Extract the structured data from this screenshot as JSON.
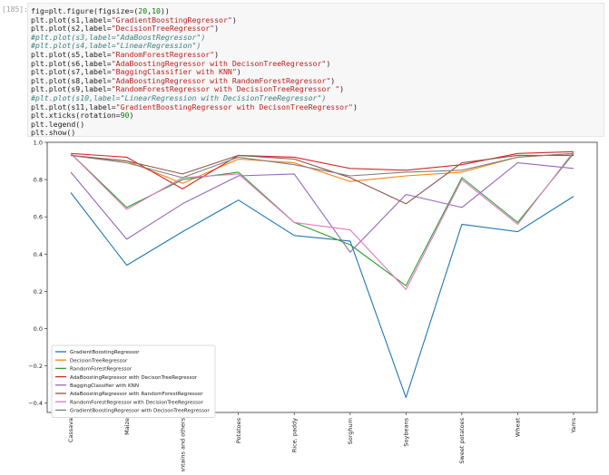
{
  "cell": {
    "prompt": "[185]:",
    "code_lines": [
      {
        "type": "code",
        "parts": [
          [
            "plain",
            "fig=plt.figure(figsize=("
          ],
          [
            "num",
            "20"
          ],
          [
            "plain",
            ","
          ],
          [
            "num",
            "10"
          ],
          [
            "plain",
            "))"
          ]
        ]
      },
      {
        "type": "code",
        "parts": [
          [
            "plain",
            "plt.plot(s1,label="
          ],
          [
            "str",
            "\"GradientBoostingRegressor\""
          ],
          [
            "plain",
            ")"
          ]
        ]
      },
      {
        "type": "code",
        "parts": [
          [
            "plain",
            "plt.plot(s2,label="
          ],
          [
            "str",
            "\"DecisionTreeRegressor\""
          ],
          [
            "plain",
            ")"
          ]
        ]
      },
      {
        "type": "comment",
        "parts": [
          [
            "plain",
            "#plt.plot(s3,label=\"AdaBoostRegressor\")"
          ]
        ]
      },
      {
        "type": "comment",
        "parts": [
          [
            "plain",
            "#plt.plot(s4,label=\"LinearRegression\")"
          ]
        ]
      },
      {
        "type": "code",
        "parts": [
          [
            "plain",
            "plt.plot(s5,label="
          ],
          [
            "str",
            "\"RandomForestRegressor\""
          ],
          [
            "plain",
            ")"
          ]
        ]
      },
      {
        "type": "code",
        "parts": [
          [
            "plain",
            "plt.plot(s6,label="
          ],
          [
            "str",
            "\"AdaBoostingRegressor with DecisonTreeRegressor\""
          ],
          [
            "plain",
            ")"
          ]
        ]
      },
      {
        "type": "code",
        "parts": [
          [
            "plain",
            "plt.plot(s7,label="
          ],
          [
            "str",
            "\"BaggingClassifier with KNN\""
          ],
          [
            "plain",
            ")"
          ]
        ]
      },
      {
        "type": "code",
        "parts": [
          [
            "plain",
            "plt.plot(s8,label="
          ],
          [
            "str",
            "\"AdaBoostingRegressor with RandomForestRegressor\""
          ],
          [
            "plain",
            ")"
          ]
        ]
      },
      {
        "type": "code",
        "parts": [
          [
            "plain",
            "plt.plot(s9,label="
          ],
          [
            "str",
            "\"RandomForestRegressor with DecisionTreeRegressor \""
          ],
          [
            "plain",
            ")"
          ]
        ]
      },
      {
        "type": "comment",
        "parts": [
          [
            "plain",
            "#plt.plot(s10,label=\"LinearRegression with DecisionTreeRegressor\")"
          ]
        ]
      },
      {
        "type": "code",
        "parts": [
          [
            "plain",
            "plt.plot(s11,label="
          ],
          [
            "str",
            "\"GradientBoostingRegressor with DecisonTreeRegressor\""
          ],
          [
            "plain",
            ")"
          ]
        ]
      },
      {
        "type": "code",
        "parts": [
          [
            "plain",
            "plt.xticks(rotation="
          ],
          [
            "num",
            "90"
          ],
          [
            "plain",
            ")"
          ]
        ]
      },
      {
        "type": "code",
        "parts": [
          [
            "plain",
            "plt.legend()"
          ]
        ]
      },
      {
        "type": "code",
        "parts": [
          [
            "plain",
            "plt.show()"
          ]
        ]
      }
    ]
  },
  "chart_data": {
    "type": "line",
    "title": "",
    "xlabel": "",
    "ylabel": "",
    "grid": false,
    "legend_position": "lower-left",
    "ylim": [
      -0.45,
      1.0
    ],
    "yticks": [
      "1.0",
      "0.8",
      "0.6",
      "0.4",
      "0.2",
      "0.0",
      "−0.2",
      "−0.4"
    ],
    "ytick_values": [
      1.0,
      0.8,
      0.6,
      0.4,
      0.2,
      0.0,
      -0.2,
      -0.4
    ],
    "categories": [
      "Cassava",
      "Maize",
      "Plantains and others",
      "Potatoes",
      "Rice, paddy",
      "Sorghum",
      "Soybeans",
      "Sweet potatoes",
      "Wheat",
      "Yams"
    ],
    "series": [
      {
        "name": "GradientBoostingRegressor",
        "color": "#1f77b4",
        "values": [
          0.73,
          0.34,
          0.52,
          0.69,
          0.5,
          0.47,
          -0.37,
          0.56,
          0.52,
          0.71
        ]
      },
      {
        "name": "DecisionTreeRegressor",
        "color": "#ff7f0e",
        "values": [
          0.93,
          0.9,
          0.78,
          0.91,
          0.89,
          0.79,
          0.82,
          0.84,
          0.92,
          0.94
        ]
      },
      {
        "name": "RandomForestRegressor",
        "color": "#2ca02c",
        "values": [
          0.94,
          0.65,
          0.8,
          0.84,
          0.57,
          0.45,
          0.23,
          0.81,
          0.57,
          0.94
        ]
      },
      {
        "name": "AdaBoostingRegressor with DecisonTreeRegressor",
        "color": "#d62728",
        "values": [
          0.94,
          0.92,
          0.75,
          0.93,
          0.92,
          0.86,
          0.85,
          0.88,
          0.94,
          0.95
        ]
      },
      {
        "name": "BaggingClassifier with KNN",
        "color": "#9467bd",
        "values": [
          0.84,
          0.48,
          0.67,
          0.82,
          0.83,
          0.41,
          0.72,
          0.65,
          0.89,
          0.86
        ]
      },
      {
        "name": "AdaBoostingRegressor with RandomForestRegressor",
        "color": "#8c564b",
        "values": [
          0.93,
          0.9,
          0.83,
          0.93,
          0.91,
          0.81,
          0.67,
          0.89,
          0.93,
          0.93
        ]
      },
      {
        "name": "RandomForestRegressor with DecisionTreeRegressor",
        "color": "#e377c2",
        "values": [
          0.94,
          0.64,
          0.81,
          0.83,
          0.57,
          0.53,
          0.21,
          0.8,
          0.56,
          0.95
        ]
      },
      {
        "name": "GradientBoostingRegressor with DecisonTreeRegressor",
        "color": "#7f7f7f",
        "values": [
          0.93,
          0.89,
          0.81,
          0.92,
          0.88,
          0.82,
          0.84,
          0.85,
          0.92,
          0.94
        ]
      }
    ]
  }
}
